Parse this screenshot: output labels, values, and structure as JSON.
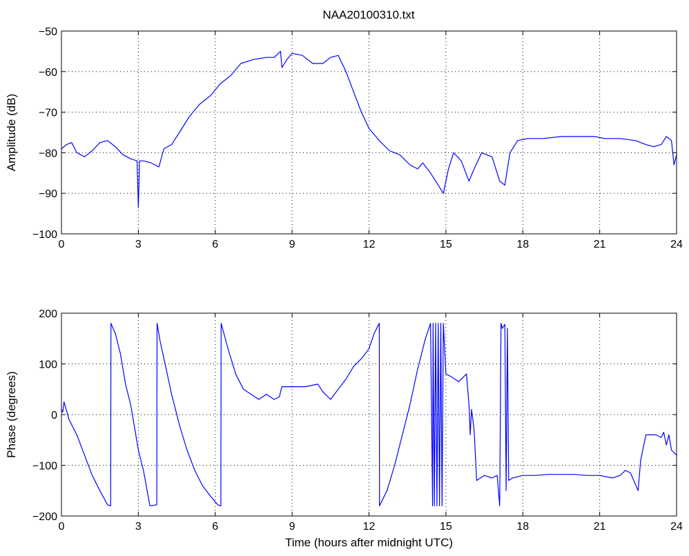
{
  "figure": {
    "title": "NAA20100310.txt"
  },
  "chart_data": [
    {
      "type": "line",
      "title": "NAA20100310.txt",
      "xlabel": "",
      "ylabel": "Amplitude (dB)",
      "xlim": [
        0,
        24
      ],
      "ylim": [
        -100,
        -50
      ],
      "xticks": [
        0,
        3,
        6,
        9,
        12,
        15,
        18,
        21,
        24
      ],
      "yticks": [
        -100,
        -90,
        -80,
        -70,
        -60,
        -50
      ],
      "grid": true,
      "line_color": "#0000ff",
      "series": [
        {
          "x": [
            0,
            0.2,
            0.4,
            0.6,
            0.9,
            1.2,
            1.5,
            1.8,
            2.1,
            2.4,
            2.7,
            2.95,
            3.0,
            3.05,
            3.2,
            3.5,
            3.8,
            4.0,
            4.3,
            4.6,
            5.0,
            5.4,
            5.8,
            6.2,
            6.6,
            7.0,
            7.5,
            8.0,
            8.3,
            8.55,
            8.6,
            8.8,
            9.0,
            9.4,
            9.8,
            10.2,
            10.5,
            10.8,
            11.1,
            11.4,
            11.7,
            12.0,
            12.4,
            12.8,
            13.2,
            13.6,
            13.9,
            14.1,
            14.4,
            14.7,
            14.9,
            15.1,
            15.3,
            15.6,
            15.9,
            16.1,
            16.4,
            16.8,
            17.1,
            17.3,
            17.5,
            17.8,
            18.2,
            18.8,
            19.5,
            20.2,
            20.8,
            21.2,
            21.8,
            22.4,
            22.8,
            23.1,
            23.4,
            23.6,
            23.8,
            23.9,
            24.0
          ],
          "y": [
            -79,
            -78,
            -77.5,
            -80,
            -81,
            -79.5,
            -77.5,
            -77,
            -78.5,
            -80.5,
            -81.5,
            -82,
            -93.5,
            -82,
            -82,
            -82.5,
            -83.5,
            -79,
            -78,
            -75,
            -71,
            -68,
            -66,
            -63,
            -61,
            -58,
            -57,
            -56.5,
            -56.5,
            -55,
            -59,
            -57,
            -55.5,
            -56,
            -58,
            -58,
            -56.5,
            -56,
            -60,
            -65,
            -70,
            -74,
            -77,
            -79.5,
            -80.5,
            -83,
            -84,
            -82.5,
            -85,
            -88,
            -90,
            -84,
            -80,
            -82,
            -87,
            -84,
            -80,
            -81,
            -87,
            -88,
            -80,
            -77,
            -76.5,
            -76.5,
            -76,
            -76,
            -76,
            -76.5,
            -76.5,
            -77,
            -78,
            -78.5,
            -78,
            -76,
            -77,
            -83,
            -80.5
          ]
        }
      ]
    },
    {
      "type": "line",
      "title": "",
      "xlabel": "Time (hours after midnight UTC)",
      "ylabel": "Phase (degrees)",
      "xlim": [
        0,
        24
      ],
      "ylim": [
        -200,
        200
      ],
      "xticks": [
        0,
        3,
        6,
        9,
        12,
        15,
        18,
        21,
        24
      ],
      "yticks": [
        -200,
        -100,
        0,
        100,
        200
      ],
      "grid": true,
      "line_color": "#0000ff",
      "series": [
        {
          "x": [
            0,
            0.05,
            0.1,
            0.3,
            0.6,
            0.9,
            1.2,
            1.5,
            1.8,
            1.92,
            1.93,
            2.1,
            2.3,
            2.5,
            2.7,
            2.9,
            3.0,
            3.2,
            3.45,
            3.72,
            3.73,
            3.85,
            4.0,
            4.3,
            4.6,
            4.9,
            5.2,
            5.5,
            5.8,
            6.1,
            6.22,
            6.23,
            6.5,
            6.8,
            7.1,
            7.4,
            7.7,
            8.0,
            8.3,
            8.5,
            8.6,
            9.0,
            9.5,
            10.0,
            10.2,
            10.5,
            10.8,
            11.1,
            11.4,
            11.7,
            12.0,
            12.2,
            12.38,
            12.4,
            12.41,
            12.7,
            13.0,
            13.3,
            13.6,
            13.9,
            14.2,
            14.4,
            14.48,
            14.5,
            14.55,
            14.6,
            14.65,
            14.7,
            14.75,
            14.8,
            14.85,
            14.9,
            15.0,
            15.2,
            15.5,
            15.8,
            15.9,
            15.95,
            16.0,
            16.1,
            16.2,
            16.5,
            16.8,
            17.0,
            17.1,
            17.15,
            17.2,
            17.3,
            17.35,
            17.4,
            17.45,
            17.6,
            18.0,
            18.5,
            19.0,
            19.5,
            20.0,
            20.5,
            21.0,
            21.5,
            21.8,
            22.0,
            22.2,
            22.5,
            22.6,
            22.8,
            23.0,
            23.2,
            23.4,
            23.5,
            23.6,
            23.7,
            23.8,
            24.0
          ],
          "y": [
            10,
            5,
            25,
            -10,
            -40,
            -80,
            -120,
            -150,
            -178,
            -180,
            180,
            160,
            120,
            60,
            20,
            -40,
            -70,
            -110,
            -180,
            -178,
            180,
            145,
            110,
            40,
            -20,
            -70,
            -110,
            -140,
            -160,
            -178,
            -180,
            180,
            130,
            80,
            50,
            40,
            30,
            40,
            30,
            35,
            55,
            55,
            55,
            60,
            45,
            30,
            50,
            70,
            95,
            110,
            130,
            160,
            178,
            180,
            -180,
            -150,
            -100,
            -40,
            20,
            90,
            150,
            180,
            -180,
            180,
            -180,
            180,
            -180,
            180,
            -180,
            180,
            -180,
            180,
            80,
            75,
            65,
            80,
            20,
            -40,
            10,
            -30,
            -130,
            -120,
            -125,
            -120,
            -180,
            180,
            170,
            178,
            -150,
            170,
            -130,
            -125,
            -120,
            -120,
            -118,
            -118,
            -118,
            -120,
            -120,
            -125,
            -120,
            -110,
            -115,
            -150,
            -90,
            -40,
            -40,
            -40,
            -45,
            -35,
            -60,
            -40,
            -70,
            -80
          ]
        }
      ]
    }
  ]
}
